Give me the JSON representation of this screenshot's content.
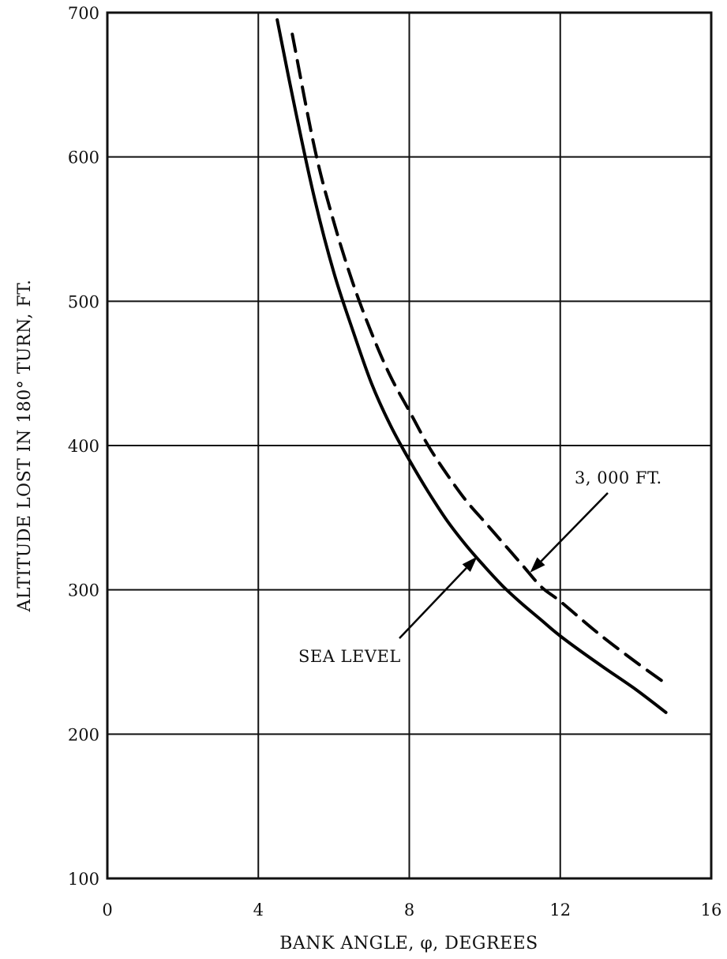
{
  "chart_data": {
    "type": "line",
    "xlabel": "BANK ANGLE, φ, DEGREES",
    "ylabel": "ALTITUDE LOST IN 180° TURN, FT.",
    "xlim": [
      0,
      16
    ],
    "ylim": [
      100,
      700
    ],
    "x_ticks": [
      "0",
      "4",
      "8",
      "12",
      "16"
    ],
    "y_ticks": [
      "100",
      "200",
      "300",
      "400",
      "500",
      "600",
      "700"
    ],
    "grid": true,
    "series": [
      {
        "name": "SEA LEVEL",
        "style": "solid",
        "x": [
          4.5,
          5.0,
          5.5,
          6.0,
          6.5,
          7.0,
          7.5,
          8.0,
          8.5,
          9.0,
          9.5,
          10.0,
          10.5,
          11.0,
          11.5,
          12.0,
          13.0,
          14.0,
          14.8
        ],
        "y": [
          695,
          630,
          570,
          520,
          480,
          443,
          414,
          390,
          368,
          348,
          331,
          316,
          302,
          290,
          279,
          268,
          249,
          231,
          215
        ]
      },
      {
        "name": "3, 000 FT.",
        "style": "dashed",
        "x": [
          4.9,
          5.5,
          6.0,
          6.5,
          7.0,
          7.5,
          8.0,
          8.5,
          9.0,
          9.5,
          10.0,
          10.5,
          11.0,
          11.5,
          12.0,
          13.0,
          14.0,
          14.8
        ],
        "y": [
          685,
          605,
          555,
          513,
          478,
          448,
          424,
          400,
          380,
          362,
          347,
          332,
          317,
          302,
          292,
          270,
          250,
          235
        ]
      }
    ],
    "annotations": [
      {
        "text": "SEA LEVEL",
        "points_to": [
          9.8,
          323
        ]
      },
      {
        "text": "3, 000 FT.",
        "points_to": [
          11.2,
          312
        ]
      }
    ]
  }
}
